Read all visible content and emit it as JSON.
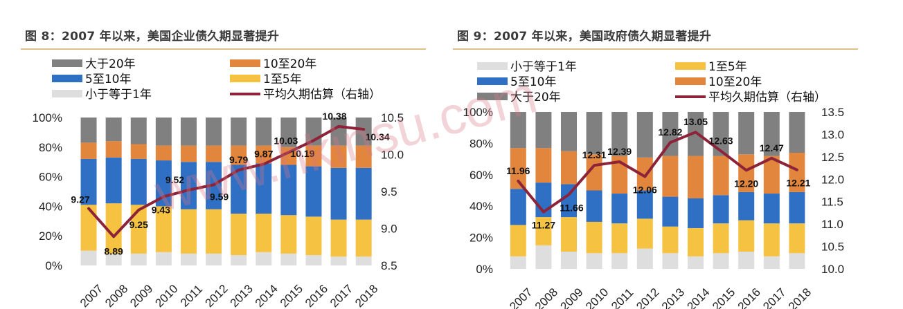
{
  "watermark": "www.hkinsu.com",
  "chart_data": [
    {
      "type": "bar",
      "title": "图 8：2007 年以来，美国企业债久期显著提升",
      "categories": [
        "2007",
        "2008",
        "2009",
        "2010",
        "2011",
        "2012",
        "2013",
        "2014",
        "2015",
        "2016",
        "2017",
        "2018"
      ],
      "stacked": true,
      "series": [
        {
          "name": "小于等于1年",
          "color": "#dedede",
          "values": [
            10,
            8,
            8,
            9,
            8,
            8,
            7,
            9,
            8,
            7,
            6,
            6
          ]
        },
        {
          "name": "1至5年",
          "color": "#f5c242",
          "values": [
            31,
            34,
            33,
            31,
            30,
            30,
            28,
            26,
            26,
            26,
            25,
            25
          ]
        },
        {
          "name": "5至10年",
          "color": "#2f6fc4",
          "values": [
            31,
            31,
            31,
            31,
            32,
            32,
            33,
            34,
            34,
            34,
            35,
            35
          ]
        },
        {
          "name": "10至20年",
          "color": "#e2853d",
          "values": [
            11,
            11,
            10,
            10,
            11,
            11,
            13,
            12,
            12,
            14,
            15,
            15
          ]
        },
        {
          "name": "大于20年",
          "color": "#808080",
          "values": [
            17,
            16,
            18,
            19,
            19,
            19,
            19,
            19,
            20,
            19,
            19,
            19
          ]
        }
      ],
      "line": {
        "name": "平均久期估算（右轴）",
        "color": "#8c2338",
        "values": [
          9.27,
          8.89,
          9.25,
          9.43,
          9.52,
          9.59,
          9.79,
          9.87,
          10.03,
          10.19,
          10.38,
          10.34
        ],
        "labels": [
          "9.27",
          "8.89",
          "9.25",
          "9.43",
          "9.52",
          "9.59",
          "9.79",
          "9.87",
          "10.03",
          "10.19",
          "10.38",
          "10.34"
        ]
      },
      "legend_order": [
        "大于20年",
        "10至20年",
        "5至10年",
        "1至5年",
        "小于等于1年",
        "平均久期估算（右轴）"
      ],
      "ylim": [
        0,
        100
      ],
      "y_ticks": [
        "0%",
        "20%",
        "40%",
        "60%",
        "80%",
        "100%"
      ],
      "y2lim": [
        8.5,
        10.5
      ],
      "y2_ticks": [
        "8.5",
        "9.0",
        "9.5",
        "10.0",
        "10.5"
      ],
      "grid": false,
      "legend_position": "top"
    },
    {
      "type": "bar",
      "title": "图 9：2007 年以来，美国政府债久期显著提升",
      "categories": [
        "2007",
        "2008",
        "2009",
        "2010",
        "2011",
        "2012",
        "2013",
        "2014",
        "2015",
        "2016",
        "2017",
        "2018"
      ],
      "stacked": true,
      "series": [
        {
          "name": "小于等于1年",
          "color": "#dedede",
          "values": [
            8,
            15,
            11,
            10,
            10,
            13,
            10,
            8,
            10,
            11,
            8,
            10
          ]
        },
        {
          "name": "1至5年",
          "color": "#f5c242",
          "values": [
            20,
            18,
            22,
            20,
            19,
            19,
            17,
            18,
            19,
            20,
            21,
            19
          ]
        },
        {
          "name": "5至10年",
          "color": "#2f6fc4",
          "values": [
            23,
            22,
            21,
            20,
            19,
            18,
            19,
            19,
            18,
            18,
            19,
            20
          ]
        },
        {
          "name": "10至20年",
          "color": "#e2853d",
          "values": [
            26,
            22,
            21,
            23,
            24,
            21,
            26,
            27,
            25,
            24,
            24,
            25
          ]
        },
        {
          "name": "大于20年",
          "color": "#808080",
          "values": [
            23,
            23,
            25,
            27,
            28,
            29,
            28,
            28,
            28,
            27,
            28,
            26
          ]
        }
      ],
      "line": {
        "name": "平均久期估算（右轴）",
        "color": "#8c2338",
        "values": [
          11.96,
          11.27,
          11.66,
          12.31,
          12.39,
          12.06,
          12.82,
          13.05,
          12.63,
          12.2,
          12.47,
          12.21
        ],
        "labels": [
          "11.96",
          "11.27",
          "11.66",
          "12.31",
          "12.39",
          "12.06",
          "12.82",
          "13.05",
          "12.63",
          "12.20",
          "12.47",
          "12.21"
        ]
      },
      "legend_order": [
        "小于等于1年",
        "1至5年",
        "5至10年",
        "10至20年",
        "大于20年",
        "平均久期估算（右轴）"
      ],
      "ylim": [
        0,
        100
      ],
      "y_ticks": [
        "0%",
        "20%",
        "40%",
        "60%",
        "80%",
        "100%"
      ],
      "y2lim": [
        10.0,
        13.5
      ],
      "y2_ticks": [
        "10.0",
        "10.5",
        "11.0",
        "11.5",
        "12.0",
        "12.5",
        "13.0",
        "13.5"
      ],
      "grid": false,
      "legend_position": "top"
    }
  ]
}
